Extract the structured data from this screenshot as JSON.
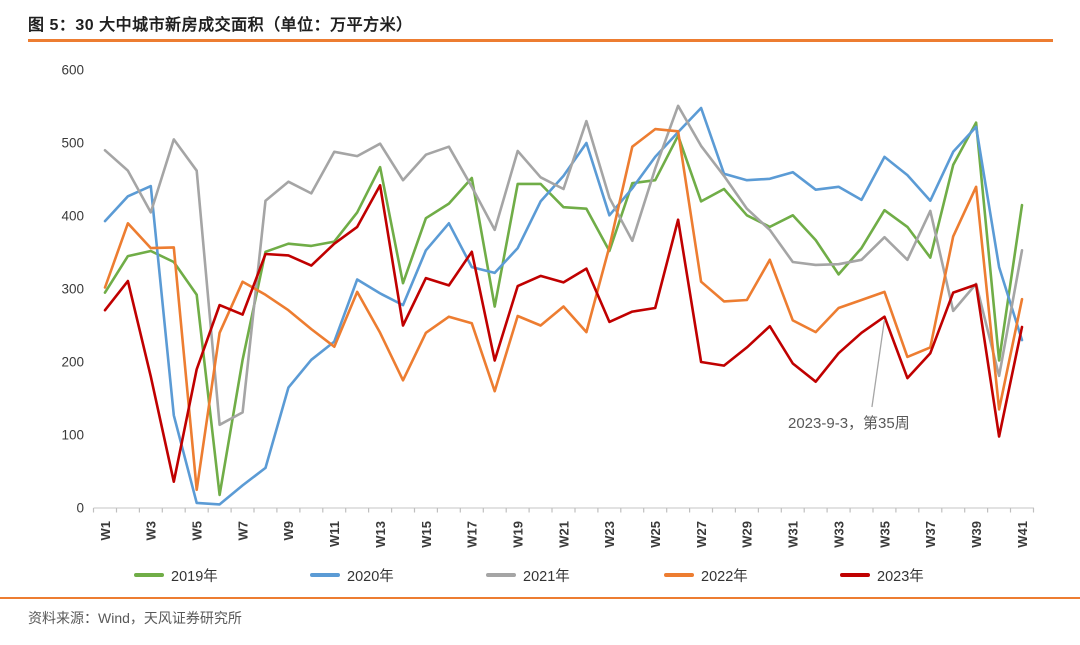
{
  "header": {
    "title": "图 5：30 大中城市新房成交面积（单位：万平方米）"
  },
  "footer": {
    "source": "资料来源：Wind，天风证券研究所"
  },
  "accent_color": "#ED7D31",
  "chart_data": {
    "type": "line",
    "title": "图 5：30 大中城市新房成交面积（单位：万平方米）",
    "unit": "万平方米",
    "grid": "off",
    "legend_position": "bottom",
    "ylim": [
      0,
      600
    ],
    "y_ticks": [
      0,
      100,
      200,
      300,
      400,
      500,
      600
    ],
    "x_tick_labels": [
      "W1",
      "W3",
      "W5",
      "W7",
      "W9",
      "W11",
      "W13",
      "W15",
      "W17",
      "W19",
      "W21",
      "W23",
      "W25",
      "W27",
      "W29",
      "W31",
      "W33",
      "W35",
      "W37",
      "W39",
      "W41"
    ],
    "categories": [
      "W1",
      "W2",
      "W3",
      "W4",
      "W5",
      "W6",
      "W7",
      "W8",
      "W9",
      "W10",
      "W11",
      "W12",
      "W13",
      "W14",
      "W15",
      "W16",
      "W17",
      "W18",
      "W19",
      "W20",
      "W21",
      "W22",
      "W23",
      "W24",
      "W25",
      "W26",
      "W27",
      "W28",
      "W29",
      "W30",
      "W31",
      "W32",
      "W33",
      "W34",
      "W35",
      "W36",
      "W37",
      "W38",
      "W39",
      "W40",
      "W41"
    ],
    "annotation": {
      "text": "2023-9-3，第35周",
      "series": "2023年",
      "week": "W35",
      "week_index": 34
    },
    "series": [
      {
        "name": "2019年",
        "color": "#70AD47",
        "values": [
          295,
          345,
          352,
          337,
          292,
          18,
          203,
          351,
          362,
          359,
          365,
          405,
          467,
          308,
          397,
          417,
          452,
          276,
          444,
          444,
          412,
          410,
          352,
          445,
          449,
          510,
          420,
          437,
          401,
          385,
          401,
          367,
          320,
          356,
          408,
          385,
          343,
          470,
          528,
          202,
          415
        ]
      },
      {
        "name": "2020年",
        "color": "#5B9BD5",
        "values": [
          393,
          427,
          441,
          127,
          7,
          5,
          31,
          55,
          165,
          203,
          228,
          313,
          294,
          278,
          353,
          390,
          330,
          322,
          356,
          420,
          455,
          500,
          401,
          438,
          481,
          515,
          548,
          458,
          449,
          451,
          460,
          436,
          440,
          422,
          481,
          456,
          421,
          488,
          522,
          330,
          230
        ]
      },
      {
        "name": "2021年",
        "color": "#A5A5A5",
        "values": [
          490,
          462,
          405,
          505,
          462,
          114,
          131,
          421,
          447,
          431,
          488,
          482,
          499,
          449,
          484,
          495,
          440,
          381,
          489,
          453,
          437,
          530,
          425,
          366,
          465,
          551,
          496,
          455,
          410,
          381,
          337,
          333,
          334,
          340,
          371,
          340,
          407,
          270,
          307,
          181,
          353
        ]
      },
      {
        "name": "2022年",
        "color": "#ED7D31",
        "values": [
          302,
          390,
          356,
          357,
          25,
          240,
          310,
          292,
          271,
          245,
          221,
          296,
          240,
          175,
          240,
          262,
          253,
          160,
          263,
          250,
          276,
          241,
          358,
          495,
          519,
          516,
          310,
          283,
          285,
          340,
          257,
          241,
          274,
          285,
          296,
          207,
          220,
          372,
          440,
          135,
          286
        ]
      },
      {
        "name": "2023年",
        "color": "#C00000",
        "values": [
          271,
          311,
          180,
          36,
          190,
          278,
          265,
          348,
          346,
          332,
          362,
          385,
          442,
          250,
          315,
          305,
          351,
          202,
          304,
          318,
          309,
          328,
          255,
          269,
          274,
          395,
          200,
          195,
          220,
          249,
          198,
          173,
          212,
          240,
          262,
          178,
          212,
          295,
          306,
          98,
          248
        ]
      }
    ]
  }
}
